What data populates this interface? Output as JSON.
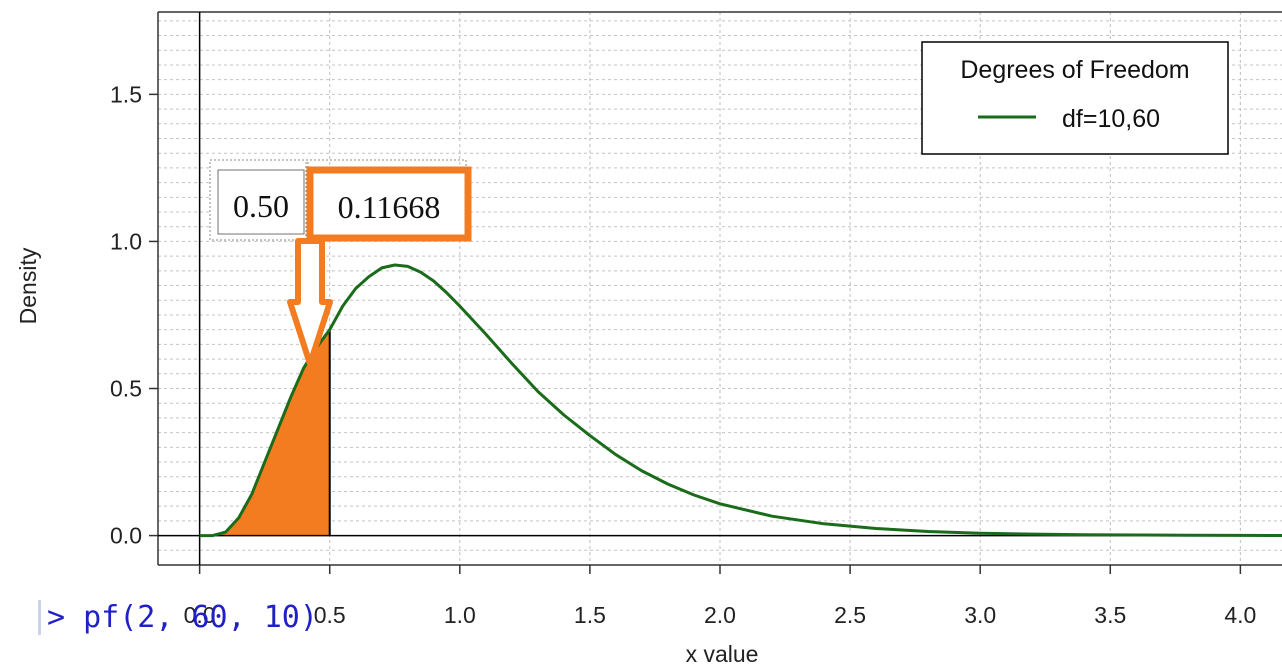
{
  "chart_data": {
    "type": "area",
    "title": "",
    "xlabel": "x value",
    "ylabel": "Density",
    "xlim": [
      -0.16,
      4.16
    ],
    "ylim": [
      -0.1,
      1.78
    ],
    "x_ticks": [
      "0.0",
      "0.5",
      "1.0",
      "1.5",
      "2.0",
      "2.5",
      "3.0",
      "3.5",
      "4.0"
    ],
    "y_ticks": [
      "0.0",
      "0.5",
      "1.0",
      "1.5"
    ],
    "grid": true,
    "series": [
      {
        "name": "df=10,60",
        "color": "#1a6b1a",
        "x": [
          0,
          0.05,
          0.1,
          0.15,
          0.2,
          0.25,
          0.3,
          0.35,
          0.4,
          0.45,
          0.5,
          0.55,
          0.6,
          0.65,
          0.7,
          0.75,
          0.8,
          0.85,
          0.9,
          0.95,
          1.0,
          1.1,
          1.2,
          1.3,
          1.4,
          1.5,
          1.6,
          1.7,
          1.8,
          1.9,
          2.0,
          2.2,
          2.4,
          2.6,
          2.8,
          3.0,
          3.2,
          3.4,
          3.6,
          3.8,
          4.0,
          4.16
        ],
        "y": [
          0,
          0.0,
          0.012,
          0.06,
          0.14,
          0.25,
          0.36,
          0.47,
          0.57,
          0.64,
          0.7,
          0.78,
          0.84,
          0.88,
          0.91,
          0.92,
          0.915,
          0.895,
          0.865,
          0.825,
          0.78,
          0.685,
          0.585,
          0.49,
          0.41,
          0.34,
          0.275,
          0.22,
          0.175,
          0.138,
          0.108,
          0.066,
          0.04,
          0.024,
          0.014,
          0.008,
          0.005,
          0.003,
          0.002,
          0.001,
          0.0005,
          0.0003
        ]
      }
    ],
    "shaded_region": {
      "from": 0,
      "to": 0.5,
      "color": "#f47c20"
    },
    "annotation": {
      "x": "0.50",
      "p": "0.11668",
      "highlight_color": "#f47c20"
    },
    "legend": {
      "title": "Degrees of Freedom",
      "position": "top-right",
      "entries": [
        "df=10,60"
      ]
    }
  },
  "console": {
    "text": "> pf(2, 60, 10)",
    "color": "#2020c8"
  }
}
